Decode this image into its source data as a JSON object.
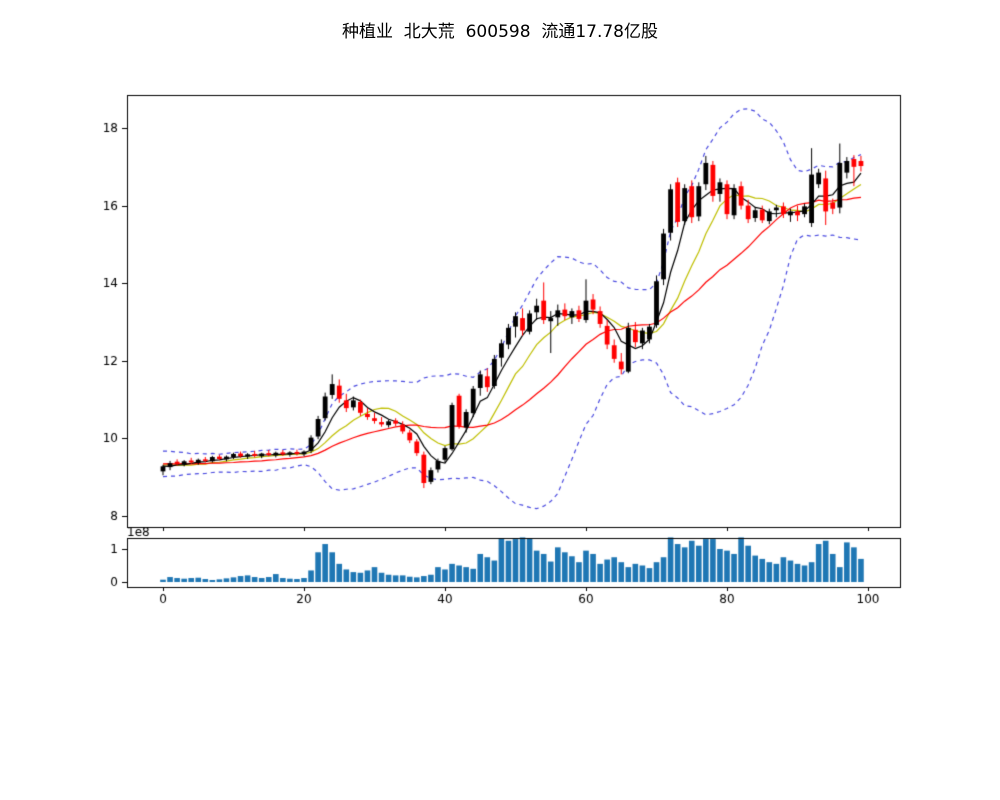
{
  "title": "种植业  北大荒  600598  流通17.78亿股",
  "chart_data": {
    "type": "candlestick+volume",
    "title": "种植业  北大荒  600598  流通17.78亿股",
    "stock": {
      "sector": "种植业",
      "name": "北大荒",
      "code": "600598",
      "float_shares": "流通17.78亿股"
    },
    "x_axis": {
      "ticks": [
        0,
        20,
        40,
        60,
        80,
        100
      ],
      "range": [
        -5.1,
        104.6
      ]
    },
    "price_axis": {
      "ticks": [
        8,
        10,
        12,
        14,
        16,
        18
      ],
      "range": [
        7.72,
        18.85
      ]
    },
    "volume_axis": {
      "ticks": [
        0,
        1
      ],
      "scale_label": "1e8",
      "range": [
        -0.152,
        1.333
      ]
    },
    "colors": {
      "up": "#000000",
      "down": "#ff0000",
      "volume": "#1f77b4",
      "frame": "#000000"
    },
    "overlays": [
      {
        "name": "bollinger20",
        "window": 20,
        "mult": 2,
        "color": "#4a4ae0",
        "style": "dashed"
      },
      {
        "name": "ma10",
        "window": 10,
        "color": "#bfbf00",
        "style": "solid"
      },
      {
        "name": "ma20",
        "window": 20,
        "color": "#ff0000",
        "style": "solid"
      },
      {
        "name": "ma5",
        "window": 5,
        "color": "#000000",
        "style": "solid"
      }
    ],
    "prehistory_closes": [
      9.7,
      9.2,
      9.55,
      9.1,
      9.62,
      9.25,
      9.5,
      9.15,
      9.58,
      9.3,
      9.48,
      9.18,
      9.55,
      9.28,
      9.45,
      9.2,
      9.4,
      9.15,
      9.38,
      9.22
    ],
    "candles_ohlcv": [
      [
        9.15,
        9.32,
        9.05,
        9.28,
        0.07
      ],
      [
        9.26,
        9.42,
        9.18,
        9.36,
        0.15
      ],
      [
        9.4,
        9.46,
        9.3,
        9.34,
        0.12
      ],
      [
        9.33,
        9.44,
        9.28,
        9.41,
        0.1
      ],
      [
        9.43,
        9.5,
        9.34,
        9.38,
        0.12
      ],
      [
        9.37,
        9.48,
        9.32,
        9.45,
        0.13
      ],
      [
        9.46,
        9.52,
        9.38,
        9.42,
        0.09
      ],
      [
        9.41,
        9.55,
        9.38,
        9.52,
        0.06
      ],
      [
        9.53,
        9.58,
        9.44,
        9.47,
        0.08
      ],
      [
        9.46,
        9.56,
        9.41,
        9.53,
        0.11
      ],
      [
        9.52,
        9.63,
        9.47,
        9.6,
        0.14
      ],
      [
        9.61,
        9.66,
        9.5,
        9.54,
        0.18
      ],
      [
        9.53,
        9.62,
        9.47,
        9.59,
        0.2
      ],
      [
        9.6,
        9.68,
        9.51,
        9.55,
        0.15
      ],
      [
        9.54,
        9.63,
        9.49,
        9.61,
        0.12
      ],
      [
        9.62,
        9.7,
        9.54,
        9.57,
        0.15
      ],
      [
        9.56,
        9.66,
        9.51,
        9.63,
        0.24
      ],
      [
        9.64,
        9.7,
        9.55,
        9.59,
        0.12
      ],
      [
        9.58,
        9.67,
        9.53,
        9.64,
        0.1
      ],
      [
        9.65,
        9.71,
        9.56,
        9.6,
        0.09
      ],
      [
        9.59,
        9.69,
        9.54,
        9.66,
        0.12
      ],
      [
        9.68,
        10.08,
        9.62,
        10.02,
        0.35
      ],
      [
        10.05,
        10.58,
        9.98,
        10.5,
        0.9
      ],
      [
        10.52,
        11.18,
        10.46,
        11.08,
        1.15
      ],
      [
        11.12,
        11.65,
        11.02,
        11.4,
        0.9
      ],
      [
        11.36,
        11.52,
        10.92,
        11.02,
        0.55
      ],
      [
        10.98,
        11.15,
        10.68,
        10.78,
        0.38
      ],
      [
        10.8,
        11.08,
        10.72,
        10.98,
        0.3
      ],
      [
        10.94,
        11.0,
        10.58,
        10.66,
        0.28
      ],
      [
        10.63,
        10.78,
        10.48,
        10.55,
        0.35
      ],
      [
        10.52,
        10.66,
        10.38,
        10.45,
        0.45
      ],
      [
        10.42,
        10.55,
        10.3,
        10.36,
        0.28
      ],
      [
        10.34,
        10.48,
        10.28,
        10.44,
        0.22
      ],
      [
        10.46,
        10.52,
        10.32,
        10.38,
        0.2
      ],
      [
        10.36,
        10.44,
        10.12,
        10.18,
        0.2
      ],
      [
        10.15,
        10.22,
        9.88,
        9.95,
        0.16
      ],
      [
        9.92,
        9.98,
        9.55,
        9.62,
        0.14
      ],
      [
        9.58,
        9.66,
        8.72,
        8.85,
        0.18
      ],
      [
        8.88,
        9.25,
        8.82,
        9.18,
        0.22
      ],
      [
        9.2,
        9.48,
        9.12,
        9.42,
        0.45
      ],
      [
        9.45,
        9.8,
        9.38,
        9.75,
        0.38
      ],
      [
        9.72,
        10.92,
        9.68,
        10.86,
        0.55
      ],
      [
        11.1,
        11.15,
        10.25,
        10.32,
        0.5
      ],
      [
        10.28,
        10.75,
        10.15,
        10.68,
        0.45
      ],
      [
        10.65,
        11.35,
        10.55,
        11.28,
        0.4
      ],
      [
        11.3,
        11.75,
        11.1,
        11.65,
        0.85
      ],
      [
        11.6,
        11.8,
        11.2,
        11.32,
        0.75
      ],
      [
        11.35,
        12.15,
        11.28,
        12.05,
        0.65
      ],
      [
        12.08,
        12.55,
        11.85,
        12.45,
        1.32
      ],
      [
        12.42,
        12.95,
        12.3,
        12.85,
        1.25
      ],
      [
        12.88,
        13.25,
        12.6,
        13.15,
        1.3
      ],
      [
        13.1,
        13.35,
        12.65,
        12.78,
        1.35
      ],
      [
        12.75,
        13.3,
        12.68,
        13.22,
        1.33
      ],
      [
        13.25,
        13.6,
        13.05,
        13.42,
        0.95
      ],
      [
        13.55,
        14.02,
        12.95,
        13.05,
        0.85
      ],
      [
        13.02,
        13.28,
        12.2,
        13.1,
        0.62
      ],
      [
        13.12,
        13.45,
        12.9,
        13.3,
        1.05
      ],
      [
        13.32,
        13.48,
        13.05,
        13.15,
        0.9
      ],
      [
        13.12,
        13.35,
        12.95,
        13.28,
        0.78
      ],
      [
        13.3,
        13.42,
        13.0,
        13.08,
        0.6
      ],
      [
        13.05,
        14.1,
        12.98,
        13.55,
        0.95
      ],
      [
        13.58,
        13.72,
        13.2,
        13.32,
        0.85
      ],
      [
        13.28,
        13.4,
        12.85,
        12.95,
        0.55
      ],
      [
        12.9,
        13.05,
        12.3,
        12.42,
        0.68
      ],
      [
        12.4,
        12.55,
        11.95,
        12.05,
        0.75
      ],
      [
        11.98,
        12.2,
        11.65,
        11.78,
        0.6
      ],
      [
        11.72,
        12.98,
        11.68,
        12.85,
        0.45
      ],
      [
        12.8,
        13.0,
        12.35,
        12.48,
        0.55
      ],
      [
        12.45,
        12.85,
        12.3,
        12.78,
        0.5
      ],
      [
        12.55,
        12.95,
        12.45,
        12.88,
        0.42
      ],
      [
        12.92,
        14.2,
        12.85,
        14.05,
        0.6
      ],
      [
        14.1,
        15.4,
        13.95,
        15.28,
        0.75
      ],
      [
        15.3,
        16.55,
        15.1,
        16.42,
        1.35
      ],
      [
        16.6,
        16.72,
        15.45,
        15.58,
        1.15
      ],
      [
        15.6,
        16.55,
        15.5,
        16.45,
        1.05
      ],
      [
        16.5,
        16.65,
        15.55,
        15.7,
        1.25
      ],
      [
        15.72,
        16.6,
        15.6,
        16.5,
        1.1
      ],
      [
        16.55,
        17.28,
        16.4,
        17.1,
        1.3
      ],
      [
        17.05,
        17.15,
        16.1,
        16.25,
        1.3
      ],
      [
        16.3,
        16.7,
        16.1,
        16.6,
        1.0
      ],
      [
        16.55,
        16.65,
        15.65,
        15.78,
        0.95
      ],
      [
        15.75,
        16.55,
        15.65,
        16.45,
        0.85
      ],
      [
        16.5,
        16.62,
        15.9,
        16.0,
        1.35
      ],
      [
        16.0,
        16.15,
        15.55,
        15.65,
        1.1
      ],
      [
        15.68,
        15.95,
        15.58,
        15.88,
        0.8
      ],
      [
        15.9,
        16.0,
        15.55,
        15.62,
        0.7
      ],
      [
        15.6,
        15.92,
        15.52,
        15.85,
        0.6
      ],
      [
        15.88,
        16.02,
        15.7,
        15.95,
        0.55
      ],
      [
        15.98,
        16.08,
        15.68,
        15.78,
        0.75
      ],
      [
        15.75,
        15.92,
        15.58,
        15.85,
        0.65
      ],
      [
        15.85,
        16.0,
        15.6,
        15.75,
        0.55
      ],
      [
        15.78,
        16.05,
        15.7,
        15.98,
        0.5
      ],
      [
        15.55,
        17.48,
        15.45,
        16.8,
        0.6
      ],
      [
        16.55,
        16.95,
        16.45,
        16.85,
        1.15
      ],
      [
        16.7,
        16.9,
        15.5,
        15.85,
        1.25
      ],
      [
        16.08,
        16.18,
        15.78,
        15.92,
        0.85
      ],
      [
        15.95,
        17.6,
        15.8,
        17.1,
        0.45
      ],
      [
        16.85,
        17.25,
        16.7,
        17.15,
        1.2
      ],
      [
        17.2,
        17.3,
        16.5,
        17.0,
        1.05
      ],
      [
        17.15,
        17.28,
        16.88,
        17.02,
        0.7
      ]
    ]
  }
}
